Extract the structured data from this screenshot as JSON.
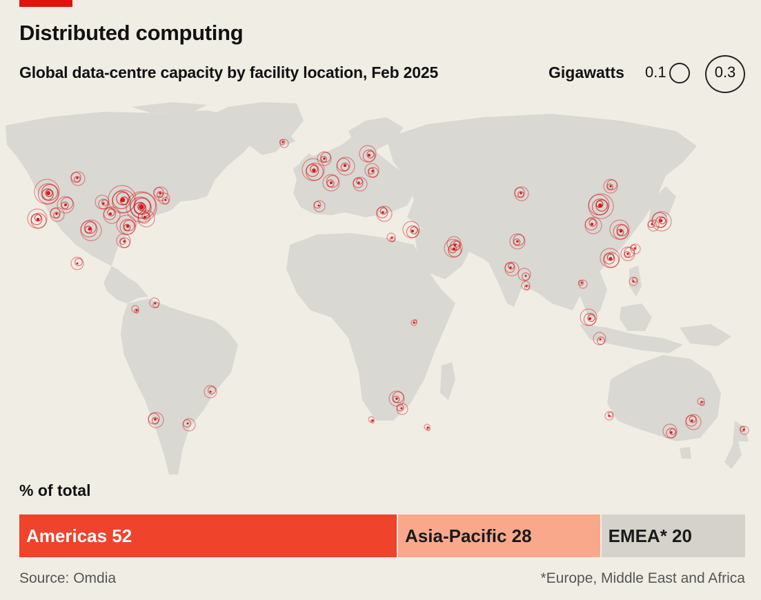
{
  "header": {
    "title": "Distributed computing",
    "subtitle": "Global data-centre capacity by facility location, Feb 2025"
  },
  "legend": {
    "title": "Gigawatts",
    "small_value": "0.1",
    "large_value": "0.3"
  },
  "colors": {
    "accent": "#e3120b",
    "land": "#d9d8d3",
    "background": "#f0ede5",
    "bubble": "#d7191c",
    "americas": "#ef432b",
    "asia_pacific": "#f9a88b",
    "emea": "#d4d2ca"
  },
  "share": {
    "label": "% of total",
    "segments": [
      {
        "label": "Americas 52",
        "value": 52,
        "color": "#ef432b"
      },
      {
        "label": "Asia-Pacific 28",
        "value": 28,
        "color": "#f9a88b"
      },
      {
        "label": "EMEA* 20",
        "value": 20,
        "color": "#d4d2ca"
      }
    ]
  },
  "footer": {
    "source": "Source: Omdia",
    "footnote": "*Europe, Middle East and Africa"
  }
}
